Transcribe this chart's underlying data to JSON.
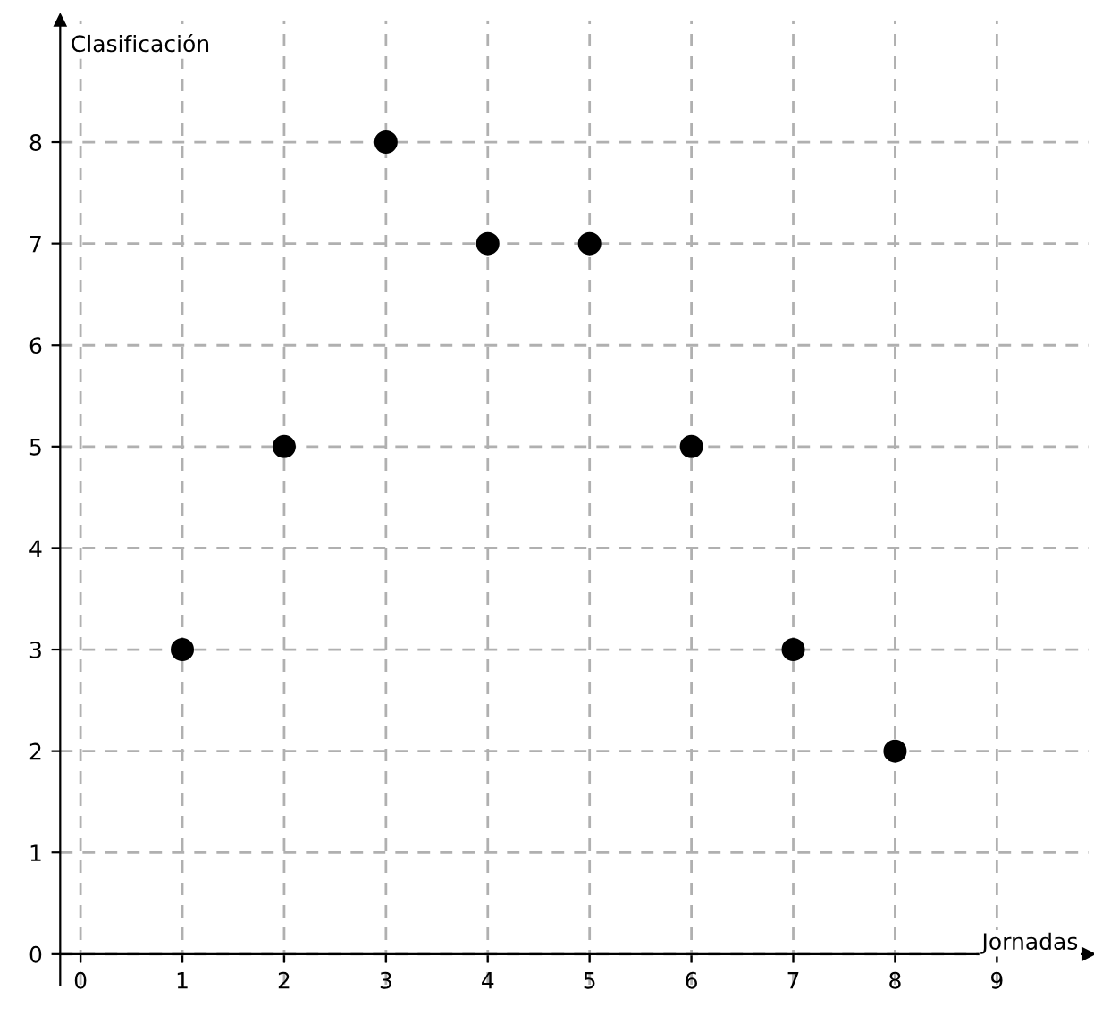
{
  "chart_data": {
    "type": "scatter",
    "xlabel": "Jornadas",
    "ylabel": "Clasificación",
    "x": [
      1,
      2,
      3,
      4,
      5,
      6,
      7,
      8
    ],
    "series": [
      {
        "color": "#000000",
        "values": [
          3,
          5,
          8,
          7,
          7,
          5,
          3,
          2
        ]
      }
    ],
    "xlim": [
      -0.2,
      9.9
    ],
    "ylim": [
      -0.3,
      9.2
    ],
    "xticks": [
      0,
      1,
      2,
      3,
      4,
      5,
      6,
      7,
      8,
      9
    ],
    "yticks": [
      0,
      1,
      2,
      3,
      4,
      5,
      6,
      7,
      8
    ],
    "grid": true,
    "marker": "circle"
  }
}
